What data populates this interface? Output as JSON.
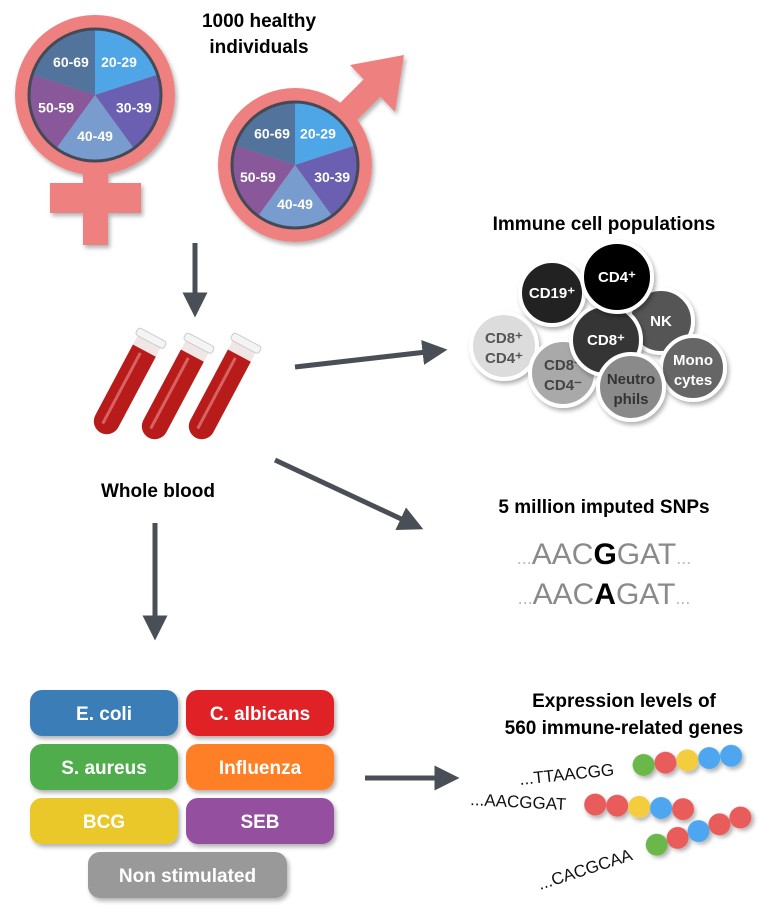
{
  "cohort": {
    "title_line1": "1000 healthy",
    "title_line2": "individuals",
    "age_groups": [
      {
        "label": "20-29",
        "color": "#4fa6e6"
      },
      {
        "label": "30-39",
        "color": "#6a5fb0"
      },
      {
        "label": "40-49",
        "color": "#779ccd"
      },
      {
        "label": "50-59",
        "color": "#88589a"
      },
      {
        "label": "60-69",
        "color": "#52739b"
      }
    ],
    "symbol_color": "#ef8080",
    "symbols": [
      "female",
      "male"
    ]
  },
  "blood": {
    "label": "Whole blood",
    "tube_color": "#b81c1a"
  },
  "immune_cells": {
    "title": "Immune cell populations",
    "cells": [
      {
        "line1": "CD8⁺",
        "line2": "CD4⁺",
        "fill": "#dcdcdc",
        "text": "#555555"
      },
      {
        "line1": "CD8⁻",
        "line2": "CD4⁻",
        "fill": "#a9a9a9",
        "text": "#444444"
      },
      {
        "line1": "CD19⁺",
        "line2": "",
        "fill": "#222222",
        "text": "#ffffff"
      },
      {
        "line1": "NK",
        "line2": "",
        "fill": "#555555",
        "text": "#ffffff"
      },
      {
        "line1": "CD8⁺",
        "line2": "",
        "fill": "#353535",
        "text": "#ffffff"
      },
      {
        "line1": "CD4⁺",
        "line2": "",
        "fill": "#000000",
        "text": "#ffffff"
      },
      {
        "line1": "Mono",
        "line2": "cytes",
        "fill": "#666666",
        "text": "#ffffff"
      },
      {
        "line1": "Neutro",
        "line2": "phils",
        "fill": "#8a8a8a",
        "text": "#333333"
      }
    ]
  },
  "snps": {
    "title": "5 million imputed SNPs",
    "rows": [
      {
        "prefix": "...",
        "before": "AAC",
        "variant": "G",
        "after": "GAT",
        "suffix": "..."
      },
      {
        "prefix": "...",
        "before": "AAC",
        "variant": "A",
        "after": "GAT",
        "suffix": "..."
      }
    ]
  },
  "stimuli": [
    {
      "label": "E. coli",
      "color": "#3a7db6"
    },
    {
      "label": "C. albicans",
      "color": "#e02428"
    },
    {
      "label": "S. aureus",
      "color": "#4fae4c"
    },
    {
      "label": "Influenza",
      "color": "#fe7f25"
    },
    {
      "label": "BCG",
      "color": "#eac82a"
    },
    {
      "label": "SEB",
      "color": "#944f9f"
    },
    {
      "label": "Non stimulated",
      "color": "#999999"
    }
  ],
  "expression": {
    "title_line1": "Expression levels of",
    "title_line2": "560 immune-related genes",
    "rows": [
      {
        "seq": "...TTAACGG",
        "dots": [
          "#6ab84a",
          "#e85c5c",
          "#f3cd3c",
          "#4fa6f0",
          "#4fa6f0"
        ]
      },
      {
        "seq": "...AACGGAT",
        "dots": [
          "#e85c5c",
          "#e85c5c",
          "#f3cd3c",
          "#4fa6f0",
          "#e85c5c"
        ]
      },
      {
        "seq": "...CACGCAA",
        "dots": [
          "#6ab84a",
          "#e85c5c",
          "#4fa6f0",
          "#e85c5c",
          "#e85c5c"
        ]
      }
    ]
  },
  "arrow_color": "#4a4f57"
}
